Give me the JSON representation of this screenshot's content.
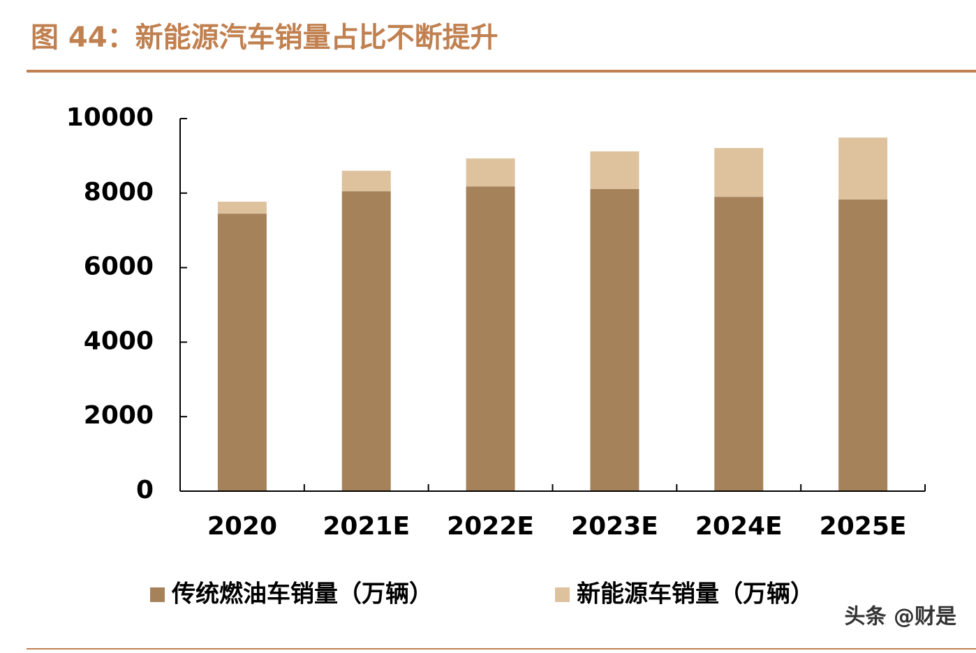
{
  "chart_data": {
    "type": "stacked_bar",
    "title": "图 44：新能源汽车销量占比不断提升",
    "categories": [
      "2020",
      "2021E",
      "2022E",
      "2023E",
      "2024E",
      "2025E"
    ],
    "series": [
      {
        "name": "传统燃油车销量（万辆）",
        "color": "#a6825a",
        "values": [
          7450,
          8050,
          8180,
          8110,
          7900,
          7830
        ]
      },
      {
        "name": "新能源车销量（万辆）",
        "color": "#ddc29d",
        "values": [
          320,
          550,
          750,
          1010,
          1310,
          1660
        ]
      }
    ],
    "ylim": [
      0,
      10000
    ],
    "yticks": [
      0,
      2000,
      4000,
      6000,
      8000,
      10000
    ],
    "legend": "bottom",
    "watermark": "头条 @财是"
  }
}
